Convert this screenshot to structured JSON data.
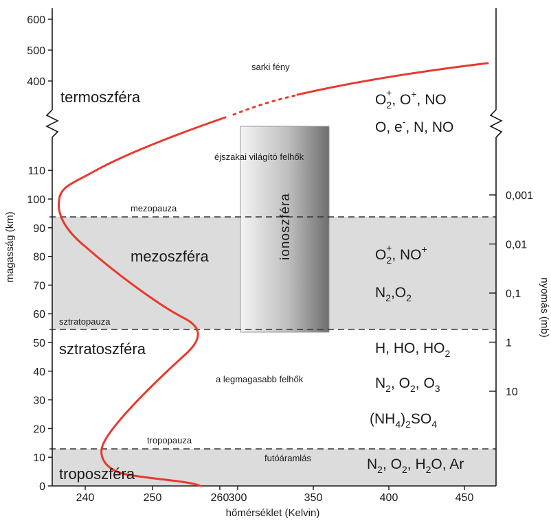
{
  "chart_data": {
    "type": "line",
    "xlabel": "hőmérséklet (Kelvin)",
    "ylabel": "magasság (km)",
    "y2label": "nyomás (mb)",
    "x_ticks": [
      "240",
      "250",
      "260",
      "300",
      "350",
      "400",
      "450"
    ],
    "y_ticks_low": [
      "0",
      "10",
      "20",
      "30",
      "40",
      "50",
      "60",
      "70",
      "80",
      "90",
      "100",
      "110"
    ],
    "y_ticks_high": [
      "400",
      "500",
      "600"
    ],
    "pressure_ticks": [
      "0,001",
      "0,01",
      "0,1",
      "1",
      "10"
    ],
    "series": [
      {
        "color": "#e8392e",
        "x": [
          291,
          262,
          250,
          245,
          245,
          255,
          270,
          272,
          265,
          250,
          240,
          236,
          238,
          252,
          270,
          300,
          330,
          380,
          470
        ],
        "y": [
          0,
          4,
          8,
          11,
          15,
          25,
          40,
          50,
          55,
          65,
          80,
          90,
          100,
          110,
          115,
          120,
          128,
          138,
          155
        ]
      }
    ]
  },
  "layers": {
    "thermo": "termoszféra",
    "meso": "mezoszféra",
    "strato": "sztratoszféra",
    "tropo": "troposzféra"
  },
  "boundaries": {
    "mesopause": "mezopauza",
    "stratopause": "sztratopauza",
    "tropopause": "tropopauza"
  },
  "annotations": {
    "aurora": "sarki fény",
    "nlc": "éjszakai világító felhők",
    "highest_clouds": "a legmagasabb felhők",
    "jet": "futóáramlás",
    "ionosphere": "ionoszféra"
  },
  "chemistry": {
    "thermo_row1": {
      "a": "O",
      "a_sub": "2",
      "a_sup": "+",
      "b": ", O",
      "b_sup": "+",
      "c": ", NO"
    },
    "thermo_row2": {
      "a": "O, e",
      "a_sup": "-",
      "b": ", N, NO"
    },
    "meso_row1": {
      "a": "O",
      "a_sub": "2",
      "a_sup": "+",
      "b": ", NO",
      "b_sup": "+"
    },
    "meso_row2": {
      "a": "N",
      "a_sub": "2",
      "b": ",O",
      "b_sub": "2"
    },
    "strato_row1": {
      "a": "H, HO, HO",
      "a_sub": "2"
    },
    "strato_row2": {
      "a": "N",
      "a_sub": "2",
      "b": ", O",
      "b_sub": "2",
      "c": ", O",
      "c_sub": "3"
    },
    "strato_row3": {
      "a": "(NH",
      "a_sub": "4",
      "b": ")",
      "b_sub": "2",
      "c": "SO",
      "c_sub": "4"
    },
    "tropo_row1": {
      "a": "N",
      "a_sub": "2",
      "b": ", O",
      "b_sub": "2",
      "c": ", H",
      "c_sub": "2",
      "d": "O, Ar"
    }
  },
  "colors": {
    "band_gray": "#dcdcdc",
    "curve_red": "#e8392e",
    "axis": "#1a1a1a"
  }
}
